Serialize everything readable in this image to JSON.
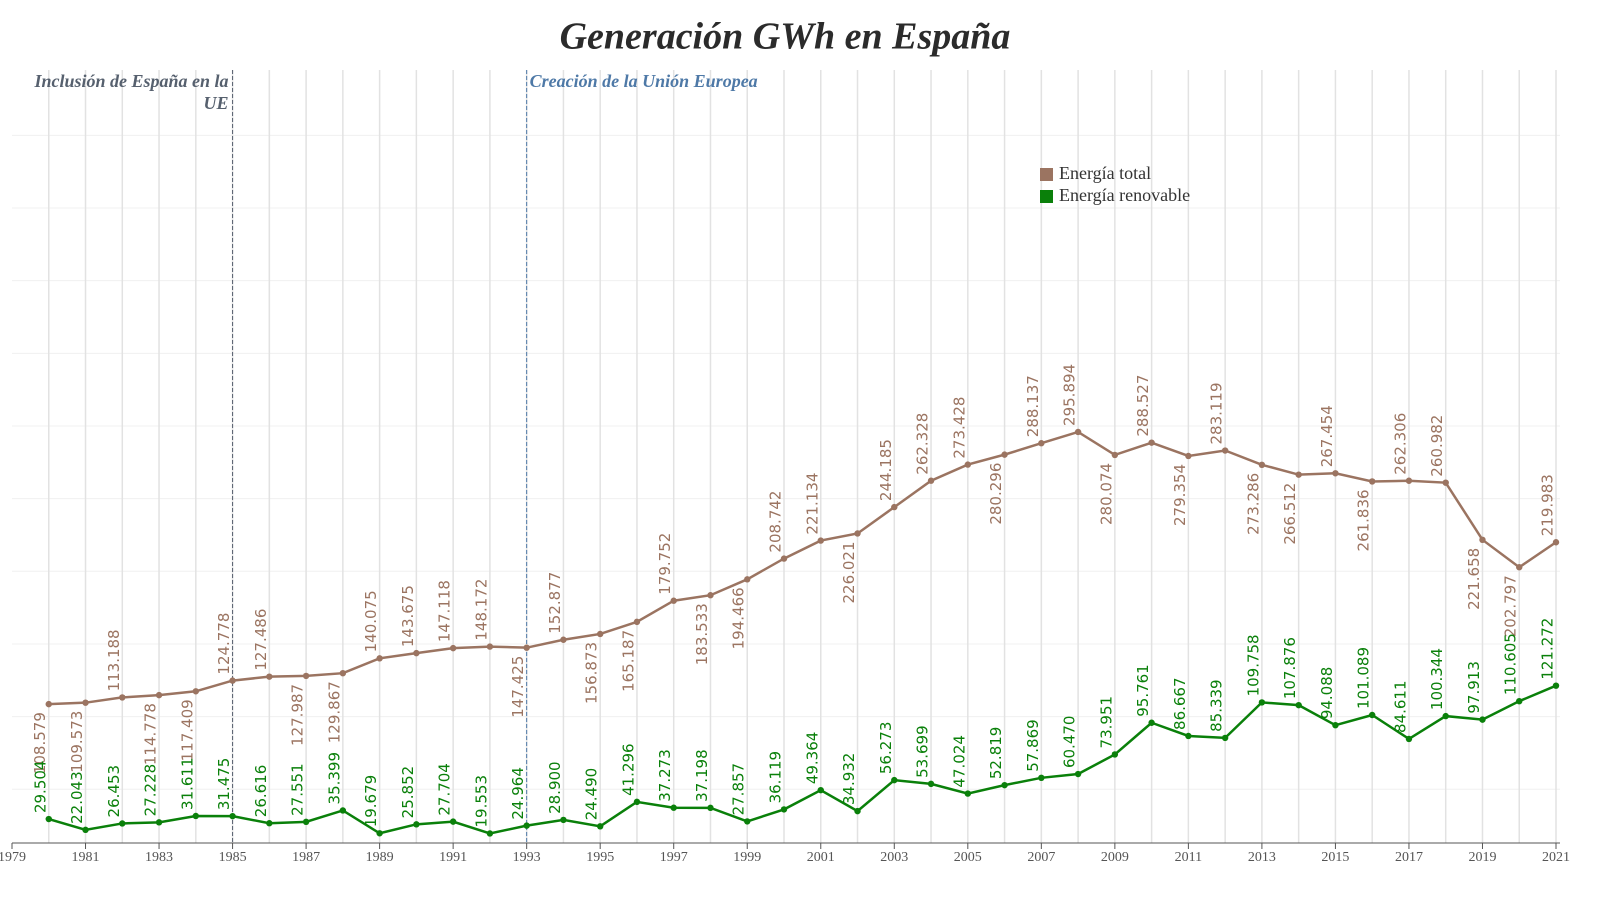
{
  "chart_data": {
    "type": "line",
    "title": "Generación GWh en España",
    "annotations": [
      {
        "text": "Inclusión de España en la UE",
        "x": 1985,
        "color": "#56606e"
      },
      {
        "text": "Creación de la Unión Europea",
        "x": 1993,
        "color": "#4e79a7"
      }
    ],
    "x": [
      1980,
      1981,
      1982,
      1983,
      1984,
      1985,
      1986,
      1987,
      1988,
      1989,
      1990,
      1991,
      1992,
      1993,
      1994,
      1995,
      1996,
      1997,
      1998,
      1999,
      2000,
      2001,
      2002,
      2003,
      2004,
      2005,
      2006,
      2007,
      2008,
      2009,
      2010,
      2011,
      2012,
      2013,
      2014,
      2015,
      2016,
      2017,
      2018,
      2019,
      2020,
      2021
    ],
    "series": [
      {
        "name": "Energía total",
        "color": "#9b7461",
        "values": [
          108.579,
          109.573,
          113.188,
          114.778,
          117.409,
          124.778,
          127.486,
          127.987,
          129.867,
          140.075,
          143.675,
          147.118,
          148.172,
          147.425,
          152.877,
          156.873,
          165.187,
          179.752,
          183.533,
          194.466,
          208.742,
          221.134,
          226.021,
          244.185,
          262.328,
          273.428,
          280.296,
          288.137,
          295.894,
          280.074,
          288.527,
          279.354,
          283.119,
          273.286,
          266.512,
          267.454,
          261.836,
          262.306,
          260.982,
          221.658,
          202.797,
          219.983
        ],
        "value_labels": [
          "108.579",
          "109.573",
          "113.188",
          "114.778",
          "117.409",
          "124.778",
          "127.486",
          "127.987",
          "129.867",
          "140.075",
          "143.675",
          "147.118",
          "148.172",
          "147.425",
          "152.877",
          "156.873",
          "165.187",
          "179.752",
          "183.533",
          "194.466",
          "208.742",
          "221.134",
          "226.021",
          "244.185",
          "262.328",
          "273.428",
          "280.296",
          "288.137",
          "295.894",
          "280.074",
          "288.527",
          "279.354",
          "283.119",
          "273.286",
          "266.512",
          "267.454",
          "261.836",
          "262.306",
          "260.982",
          "221.658",
          "202.797",
          "219.983"
        ]
      },
      {
        "name": "Energía renovable",
        "color": "#0a800a",
        "values": [
          29.504,
          22.043,
          26.453,
          27.228,
          31.611,
          31.475,
          26.616,
          27.551,
          35.399,
          19.679,
          25.852,
          27.704,
          19.553,
          24.964,
          28.9,
          24.49,
          41.296,
          37.273,
          37.198,
          27.857,
          36.119,
          49.364,
          34.932,
          56.273,
          53.699,
          47.024,
          52.819,
          57.869,
          60.47,
          73.951,
          95.761,
          86.667,
          85.339,
          109.758,
          107.876,
          94.088,
          101.089,
          84.611,
          100.344,
          97.913,
          110.605,
          121.272
        ],
        "value_labels": [
          "29.504",
          "22.043",
          "26.453",
          "27.228",
          "31.611",
          "31.475",
          "26.616",
          "27.551",
          "35.399",
          "19.679",
          "25.852",
          "27.704",
          "19.553",
          "24.964",
          "28.900",
          "24.490",
          "41.296",
          "37.273",
          "37.198",
          "27.857",
          "36.119",
          "49.364",
          "34.932",
          "56.273",
          "53.699",
          "47.024",
          "52.819",
          "57.869",
          "60.470",
          "73.951",
          "95.761",
          "86.667",
          "85.339",
          "109.758",
          "107.876",
          "94.088",
          "101.089",
          "84.611",
          "100.344",
          "97.913",
          "110.605",
          "121.272"
        ]
      }
    ],
    "xlim": [
      1979,
      2021
    ],
    "xticks": [
      1979,
      1981,
      1983,
      1985,
      1987,
      1989,
      1991,
      1993,
      1995,
      1997,
      1999,
      2001,
      2003,
      2005,
      2007,
      2009,
      2011,
      2013,
      2015,
      2017,
      2019,
      2021
    ],
    "ylim": [
      13,
      545
    ],
    "yticks": [
      50,
      100,
      150,
      200,
      250,
      300,
      350,
      400,
      450,
      500
    ],
    "grid": true,
    "legend": "upper right"
  }
}
